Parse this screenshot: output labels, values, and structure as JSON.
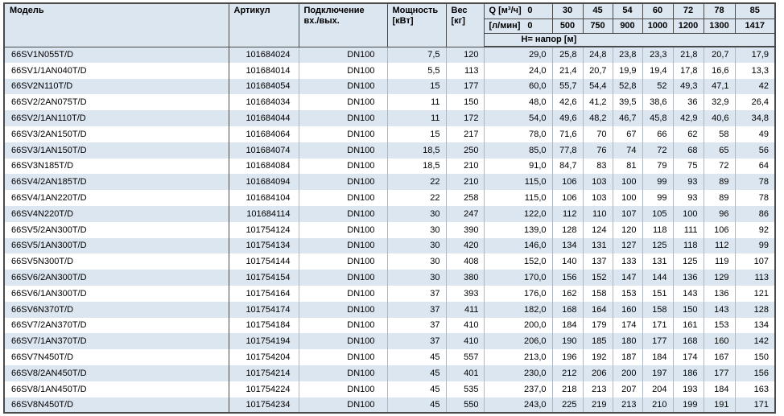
{
  "table": {
    "headers": {
      "model": "Модель",
      "article": "Артикул",
      "connection_line1": "Подключение",
      "connection_line2": "вх./вых.",
      "power_line1": "Мощность",
      "power_line2": "[кВт]",
      "weight_line1": "Вес",
      "weight_line2": "[кг]",
      "q_label_m3h": "Q [м³/ч]",
      "q_zero_m3h": "0",
      "q_label_lmin": "[л/мин]",
      "q_zero_lmin": "0",
      "head_row_label": "Н= напор [м]",
      "flow_columns": [
        {
          "m3h": "30",
          "lmin": "500"
        },
        {
          "m3h": "45",
          "lmin": "750"
        },
        {
          "m3h": "54",
          "lmin": "900"
        },
        {
          "m3h": "60",
          "lmin": "1000"
        },
        {
          "m3h": "72",
          "lmin": "1200"
        },
        {
          "m3h": "78",
          "lmin": "1300"
        },
        {
          "m3h": "85",
          "lmin": "1417"
        }
      ]
    },
    "rows": [
      {
        "model": "66SV1N055T/D",
        "article": "101684024",
        "connection": "DN100",
        "power": "7,5",
        "weight": "120",
        "head_m": [
          "29,0",
          "25,8",
          "24,8",
          "23,8",
          "23,3",
          "21,8",
          "20,7",
          "17,9"
        ]
      },
      {
        "model": "66SV1/1AN040T/D",
        "article": "101684014",
        "connection": "DN100",
        "power": "5,5",
        "weight": "113",
        "head_m": [
          "24,0",
          "21,4",
          "20,7",
          "19,9",
          "19,4",
          "17,8",
          "16,6",
          "13,3"
        ]
      },
      {
        "model": "66SV2N110T/D",
        "article": "101684054",
        "connection": "DN100",
        "power": "15",
        "weight": "177",
        "head_m": [
          "60,0",
          "55,7",
          "54,4",
          "52,8",
          "52",
          "49,3",
          "47,1",
          "42"
        ]
      },
      {
        "model": "66SV2/2AN075T/D",
        "article": "101684034",
        "connection": "DN100",
        "power": "11",
        "weight": "150",
        "head_m": [
          "48,0",
          "42,6",
          "41,2",
          "39,5",
          "38,6",
          "36",
          "32,9",
          "26,4"
        ]
      },
      {
        "model": "66SV2/1AN110T/D",
        "article": "101684044",
        "connection": "DN100",
        "power": "11",
        "weight": "172",
        "head_m": [
          "54,0",
          "49,6",
          "48,2",
          "46,7",
          "45,8",
          "42,9",
          "40,6",
          "34,8"
        ]
      },
      {
        "model": "66SV3/2AN150T/D",
        "article": "101684064",
        "connection": "DN100",
        "power": "15",
        "weight": "217",
        "head_m": [
          "78,0",
          "71,6",
          "70",
          "67",
          "66",
          "62",
          "58",
          "49"
        ]
      },
      {
        "model": "66SV3/1AN150T/D",
        "article": "101684074",
        "connection": "DN100",
        "power": "18,5",
        "weight": "250",
        "head_m": [
          "85,0",
          "77,8",
          "76",
          "74",
          "72",
          "68",
          "65",
          "56"
        ]
      },
      {
        "model": "66SV3N185T/D",
        "article": "101684084",
        "connection": "DN100",
        "power": "18,5",
        "weight": "210",
        "head_m": [
          "91,0",
          "84,7",
          "83",
          "81",
          "79",
          "75",
          "72",
          "64"
        ]
      },
      {
        "model": "66SV4/2AN185T/D",
        "article": "101684094",
        "connection": "DN100",
        "power": "22",
        "weight": "210",
        "head_m": [
          "115,0",
          "106",
          "103",
          "100",
          "99",
          "93",
          "89",
          "78"
        ]
      },
      {
        "model": "66SV4/1AN220T/D",
        "article": "101684104",
        "connection": "DN100",
        "power": "22",
        "weight": "258",
        "head_m": [
          "115,0",
          "106",
          "103",
          "100",
          "99",
          "93",
          "89",
          "78"
        ]
      },
      {
        "model": "66SV4N220T/D",
        "article": "101684114",
        "connection": "DN100",
        "power": "30",
        "weight": "247",
        "head_m": [
          "122,0",
          "112",
          "110",
          "107",
          "105",
          "100",
          "96",
          "86"
        ]
      },
      {
        "model": "66SV5/2AN300T/D",
        "article": "101754124",
        "connection": "DN100",
        "power": "30",
        "weight": "390",
        "head_m": [
          "139,0",
          "128",
          "124",
          "120",
          "118",
          "111",
          "106",
          "92"
        ]
      },
      {
        "model": "66SV5/1AN300T/D",
        "article": "101754134",
        "connection": "DN100",
        "power": "30",
        "weight": "420",
        "head_m": [
          "146,0",
          "134",
          "131",
          "127",
          "125",
          "118",
          "112",
          "99"
        ]
      },
      {
        "model": "66SV5N300T/D",
        "article": "101754144",
        "connection": "DN100",
        "power": "30",
        "weight": "408",
        "head_m": [
          "152,0",
          "140",
          "137",
          "133",
          "131",
          "125",
          "119",
          "107"
        ]
      },
      {
        "model": "66SV6/2AN300T/D",
        "article": "101754154",
        "connection": "DN100",
        "power": "30",
        "weight": "380",
        "head_m": [
          "170,0",
          "156",
          "152",
          "147",
          "144",
          "136",
          "129",
          "113"
        ]
      },
      {
        "model": "66SV6/1AN300T/D",
        "article": "101754164",
        "connection": "DN100",
        "power": "37",
        "weight": "393",
        "head_m": [
          "176,0",
          "162",
          "158",
          "153",
          "151",
          "143",
          "136",
          "121"
        ]
      },
      {
        "model": "66SV6N370T/D",
        "article": "101754174",
        "connection": "DN100",
        "power": "37",
        "weight": "411",
        "head_m": [
          "182,0",
          "168",
          "164",
          "160",
          "158",
          "150",
          "143",
          "128"
        ]
      },
      {
        "model": "66SV7/2AN370T/D",
        "article": "101754184",
        "connection": "DN100",
        "power": "37",
        "weight": "410",
        "head_m": [
          "200,0",
          "184",
          "179",
          "174",
          "171",
          "161",
          "153",
          "134"
        ]
      },
      {
        "model": "66SV7/1AN370T/D",
        "article": "101754194",
        "connection": "DN100",
        "power": "37",
        "weight": "410",
        "head_m": [
          "206,0",
          "190",
          "185",
          "180",
          "177",
          "168",
          "160",
          "142"
        ]
      },
      {
        "model": "66SV7N450T/D",
        "article": "101754204",
        "connection": "DN100",
        "power": "45",
        "weight": "557",
        "head_m": [
          "213,0",
          "196",
          "192",
          "187",
          "184",
          "174",
          "167",
          "150"
        ]
      },
      {
        "model": "66SV8/2AN450T/D",
        "article": "101754214",
        "connection": "DN100",
        "power": "45",
        "weight": "401",
        "head_m": [
          "230,0",
          "212",
          "206",
          "200",
          "197",
          "186",
          "177",
          "156"
        ]
      },
      {
        "model": "66SV8/1AN450T/D",
        "article": "101754224",
        "connection": "DN100",
        "power": "45",
        "weight": "535",
        "head_m": [
          "237,0",
          "218",
          "213",
          "207",
          "204",
          "193",
          "184",
          "163"
        ]
      },
      {
        "model": "66SV8N450T/D",
        "article": "101754234",
        "connection": "DN100",
        "power": "45",
        "weight": "550",
        "head_m": [
          "243,0",
          "225",
          "219",
          "213",
          "210",
          "199",
          "191",
          "171"
        ]
      }
    ]
  },
  "colors": {
    "header_bg": "#dce6f1",
    "stripe_bg": "#dce6f1",
    "row_bg": "#ffffff",
    "border_dark": "#4a4a4a",
    "border_light": "#aeb6c2",
    "text": "#000000"
  }
}
